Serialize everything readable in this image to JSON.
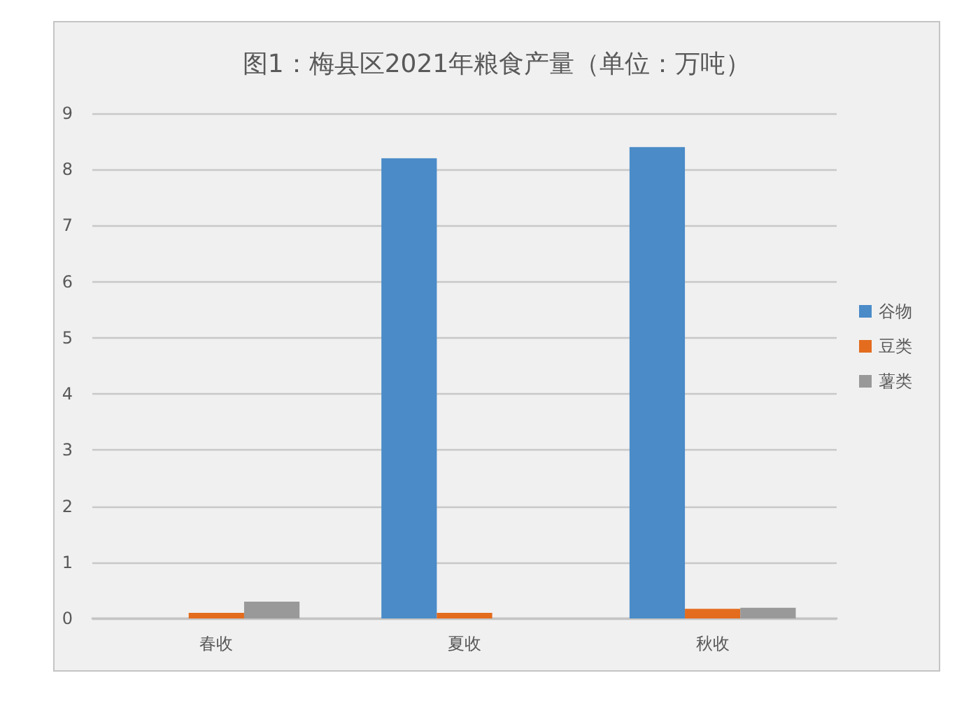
{
  "chart_data": {
    "type": "bar",
    "title": "图1：梅县区2021年粮食产量（单位：万吨）",
    "categories": [
      "春收",
      "夏收",
      "秋收"
    ],
    "series": [
      {
        "name": "谷物",
        "color": "#4a8bc8",
        "values": [
          null,
          8.2,
          8.4
        ]
      },
      {
        "name": "豆类",
        "color": "#e36c1e",
        "values": [
          0.1,
          0.1,
          0.17
        ]
      },
      {
        "name": "薯类",
        "color": "#999999",
        "values": [
          0.3,
          null,
          0.19
        ]
      }
    ],
    "ylim": [
      0,
      9
    ],
    "yticks": [
      0,
      1,
      2,
      3,
      4,
      5,
      6,
      7,
      8,
      9
    ],
    "grid": "y",
    "legend": "right"
  }
}
